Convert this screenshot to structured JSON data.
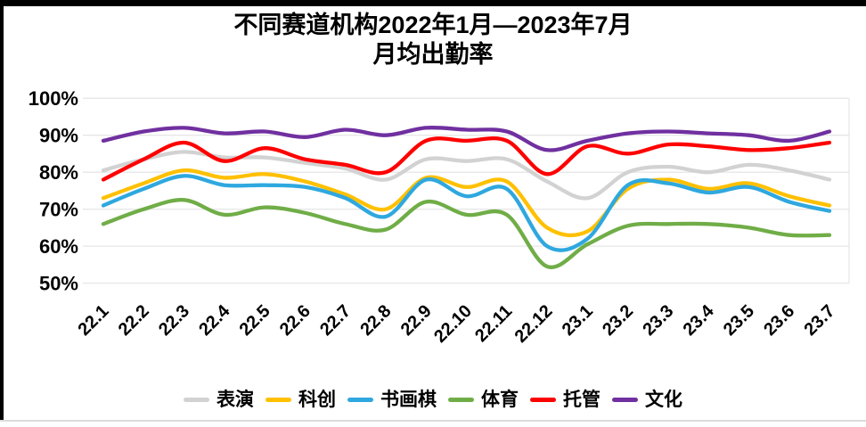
{
  "window": {
    "top_border_color": "#000000",
    "left_border_color": "#000000",
    "bottom_separator_color": "#dcdcdc",
    "background_color": "#ffffff"
  },
  "chart_data": {
    "type": "line",
    "title_line1": "不同赛道机构2022年1月—2023年7月",
    "title_line2": "月均出勤率",
    "line_smoothing": true,
    "grid": true,
    "legend_position": "bottom",
    "gridline_color": "#e7e7e7",
    "categories": [
      "22.1",
      "22.2",
      "22.3",
      "22.4",
      "22.5",
      "22.6",
      "22.7",
      "22.8",
      "22.9",
      "22.10",
      "22.11",
      "22.12",
      "23.1",
      "23.2",
      "23.3",
      "23.4",
      "23.5",
      "23.6",
      "23.7"
    ],
    "y_axis": {
      "min": 50,
      "max": 100,
      "step": 10,
      "tick_labels": [
        "50%",
        "60%",
        "70%",
        "80%",
        "90%",
        "100%"
      ]
    },
    "series": [
      {
        "key": "performance",
        "name": "表演",
        "color": "#d2d2d2",
        "values": [
          80.5,
          83.5,
          85.5,
          84,
          84,
          82.5,
          81,
          78,
          83.5,
          83,
          83.5,
          77.5,
          73,
          80,
          81.5,
          80,
          82,
          80.5,
          78
        ]
      },
      {
        "key": "sci-tech",
        "name": "科创",
        "color": "#ffc000",
        "values": [
          73,
          77,
          80.5,
          78.5,
          79.5,
          77.5,
          74,
          70,
          78.5,
          76,
          77.5,
          65,
          64,
          75.5,
          78,
          75.5,
          77,
          73.5,
          71
        ]
      },
      {
        "key": "calligraphy-chess",
        "name": "书画棋",
        "color": "#2fa8df",
        "values": [
          71,
          75.5,
          79,
          76.5,
          76.5,
          76,
          73,
          68,
          78,
          73.5,
          75.5,
          60,
          62,
          76.5,
          77,
          74.5,
          76,
          72,
          69.5
        ]
      },
      {
        "key": "sports",
        "name": "体育",
        "color": "#70ad47",
        "values": [
          66,
          70,
          72.5,
          68.5,
          70.5,
          69,
          66,
          64.5,
          72,
          68.5,
          68.5,
          54.5,
          60.5,
          65.5,
          66,
          66,
          65,
          63,
          63
        ]
      },
      {
        "key": "daycare",
        "name": "托管",
        "color": "#ff0000",
        "values": [
          78,
          83.5,
          88,
          83,
          86.5,
          83.5,
          82,
          80,
          88.5,
          88.5,
          88.5,
          79.5,
          87,
          85,
          87.5,
          87,
          86,
          86.5,
          88
        ]
      },
      {
        "key": "culture",
        "name": "文化",
        "color": "#7030a0",
        "values": [
          88.5,
          91,
          92,
          90.5,
          91,
          89.5,
          91.5,
          90,
          92,
          91.5,
          91,
          86,
          88.5,
          90.5,
          91,
          90.5,
          90,
          88.5,
          91
        ]
      }
    ]
  }
}
